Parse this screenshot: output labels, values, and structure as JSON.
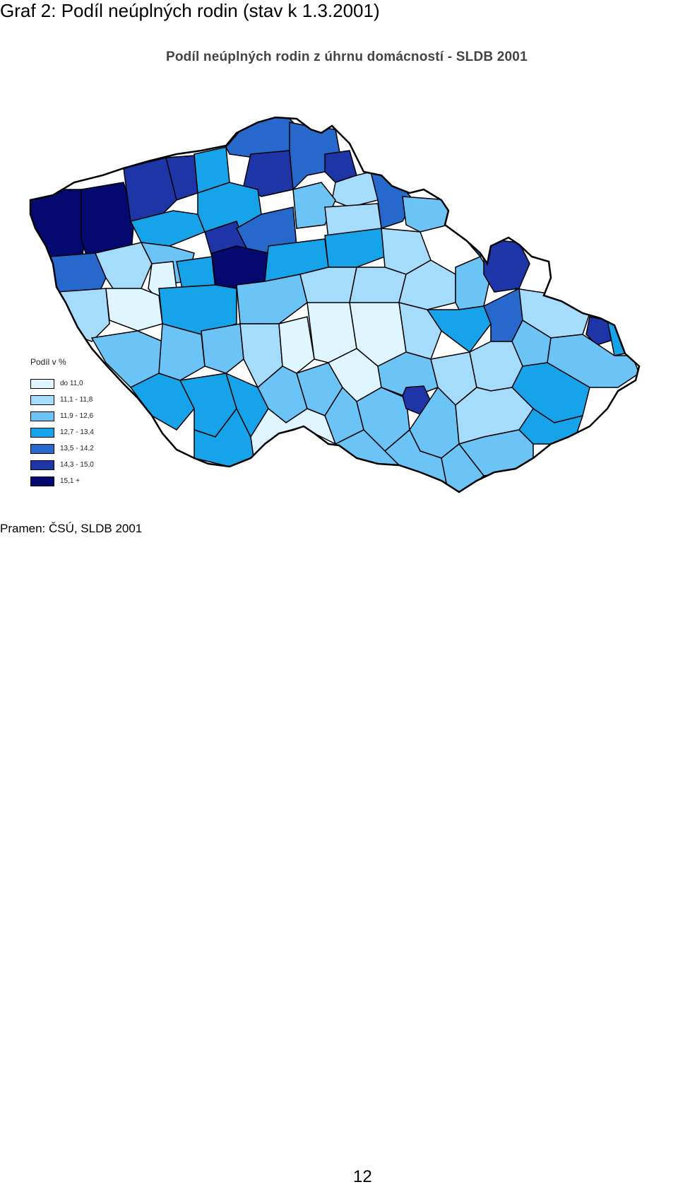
{
  "caption": "Graf 2: Podíl neúplných rodin (stav k 1.3.2001)",
  "map": {
    "title": "Podíl neúplných rodin z úhrnu domácností - SLDB 2001",
    "colors": [
      "#dff5ff",
      "#a6dcfb",
      "#6cc3f5",
      "#16a3ea",
      "#2668cc",
      "#1d35a6",
      "#03096f"
    ],
    "legend": {
      "title": "Podíl v %",
      "items": [
        {
          "label": "do 11,0",
          "color": "#dff5ff"
        },
        {
          "label": "11,1 - 11,8",
          "color": "#a6dcfb"
        },
        {
          "label": "11,9 - 12,6",
          "color": "#6cc3f5"
        },
        {
          "label": "12,7 - 13,4",
          "color": "#16a3ea"
        },
        {
          "label": "13,5 - 14,2",
          "color": "#2668cc"
        },
        {
          "label": "14,3 - 15,0",
          "color": "#1d35a6"
        },
        {
          "label": "15,1 +",
          "color": "#03096f"
        }
      ]
    }
  },
  "source": "Pramen: ČSÚ, SLDB 2001",
  "page_number": "12"
}
